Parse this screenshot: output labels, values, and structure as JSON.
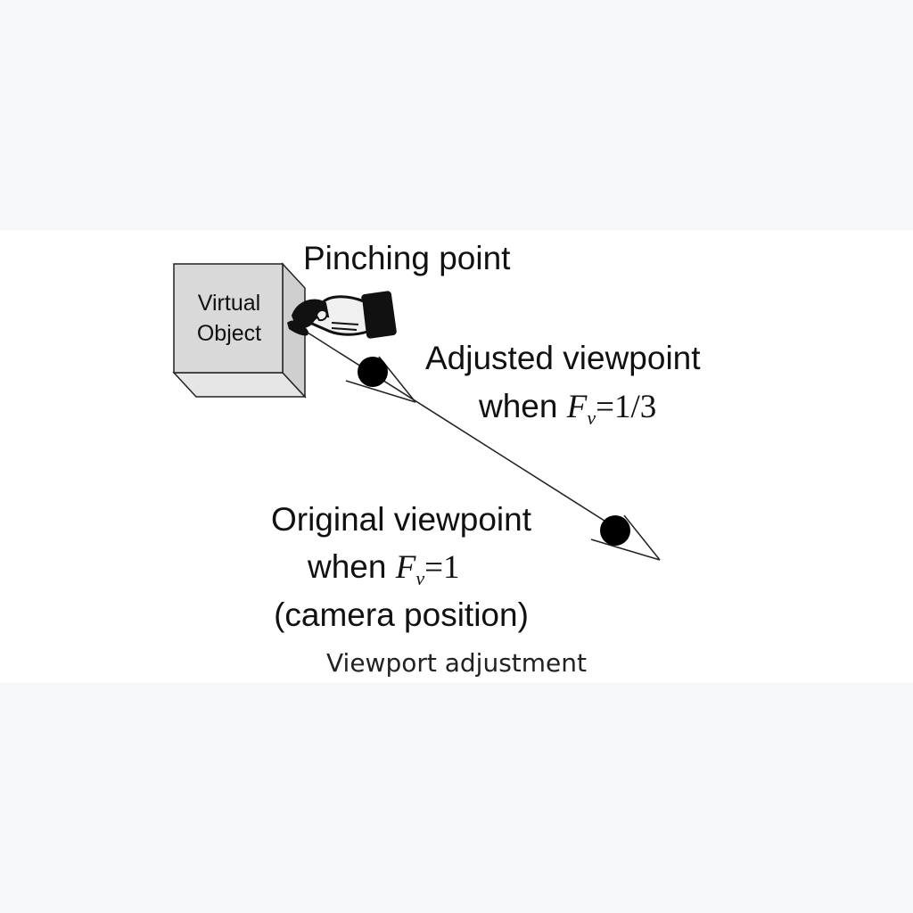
{
  "figure": {
    "object_line1": "Virtual",
    "object_line2": "Object",
    "pinching_label": "Pinching point",
    "adjusted_line1": "Adjusted viewpoint",
    "adjusted_when": "when ",
    "adjusted_var": "F",
    "adjusted_sub": "v",
    "adjusted_value": "=1/3",
    "original_line1": "Original viewpoint",
    "original_when": "when ",
    "original_var": "F",
    "original_sub": "v",
    "original_value": "=1",
    "original_line3": "(camera position)"
  },
  "caption": "Viewport adjustment",
  "colors": {
    "page_background": "#f7f8fa",
    "panel_background": "#ffffff",
    "cube_face": "#d9d9d9",
    "viewpoint_dot": "#000000"
  },
  "icons": [
    "hand-pinch-icon"
  ]
}
